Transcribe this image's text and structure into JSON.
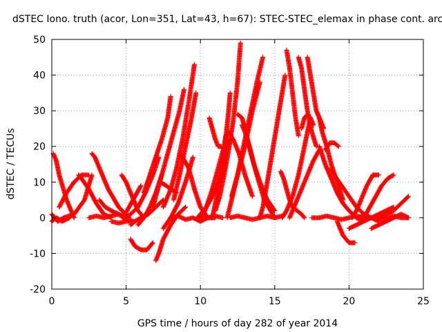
{
  "chart_data": {
    "type": "scatter",
    "title": "dSTEC Iono. truth (acor, Lon=351, Lat=43, h=67): STEC-STEC_elemax in phase cont. arc",
    "xlabel": "GPS time / hours of day 282 of year 2014",
    "ylabel": "dSTEC  / TECUs",
    "xlim": [
      0,
      25
    ],
    "ylim": [
      -20,
      50
    ],
    "x_ticks": [
      "0",
      "5",
      "10",
      "15",
      "20",
      "25"
    ],
    "y_ticks": [
      "-20",
      "-10",
      "0",
      "10",
      "20",
      "30",
      "40",
      "50"
    ],
    "grid": true,
    "marker": "+",
    "series_color": "#ff0000",
    "series": [
      {
        "x": [
          0.1,
          0.3,
          0.5,
          1.0,
          1.5
        ],
        "y": [
          18,
          16,
          12,
          5,
          0
        ]
      },
      {
        "x": [
          0.0,
          0.3,
          0.7,
          1.2
        ],
        "y": [
          -1,
          0,
          -1,
          0
        ]
      },
      {
        "x": [
          0.0,
          0.4,
          0.8,
          1.5,
          2.2,
          2.7
        ],
        "y": [
          1,
          -1,
          0,
          1,
          5,
          12
        ]
      },
      {
        "x": [
          1.8,
          2.0,
          2.5,
          3.0,
          3.5,
          4.0
        ],
        "y": [
          12,
          11,
          8,
          4,
          1,
          0
        ]
      },
      {
        "x": [
          0.5,
          1.0,
          1.5,
          2.0,
          2.5
        ],
        "y": [
          3,
          7,
          10,
          12,
          12
        ]
      },
      {
        "x": [
          2.7,
          2.9,
          3.3,
          3.8,
          4.5,
          5.2
        ],
        "y": [
          18,
          17,
          13,
          8,
          3,
          0
        ]
      },
      {
        "x": [
          2.5,
          3.0,
          3.5,
          4.0,
          4.5,
          5.0,
          5.5
        ],
        "y": [
          0,
          0.5,
          0,
          0.5,
          1,
          -0.5,
          -1
        ]
      },
      {
        "x": [
          3.2,
          3.6,
          4.0,
          4.5,
          5.0
        ],
        "y": [
          5,
          3,
          2,
          1,
          0
        ]
      },
      {
        "x": [
          4.7,
          5.0,
          5.4,
          5.8,
          6.2
        ],
        "y": [
          12,
          10,
          6,
          2,
          0
        ]
      },
      {
        "x": [
          4.0,
          4.5,
          5.0,
          5.5
        ],
        "y": [
          -1,
          -1.5,
          -1,
          -1
        ]
      },
      {
        "x": [
          4.8,
          5.2,
          5.6,
          6.0
        ],
        "y": [
          0,
          3,
          6,
          9
        ]
      },
      {
        "x": [
          5.3,
          5.6,
          6.0,
          6.5,
          7.0,
          7.5
        ],
        "y": [
          -2,
          -1,
          0,
          1,
          3,
          5
        ]
      },
      {
        "x": [
          5.0,
          5.3,
          5.8,
          6.3,
          6.8,
          7.2
        ],
        "y": [
          0,
          1,
          3,
          7,
          12,
          17
        ]
      },
      {
        "x": [
          5.3,
          5.6,
          6.0,
          6.4,
          6.8
        ],
        "y": [
          -6,
          -8,
          -9,
          -9,
          -7
        ]
      },
      {
        "x": [
          5.8,
          6.2,
          6.6,
          7.0,
          7.4
        ],
        "y": [
          -2,
          0,
          3,
          7,
          12
        ]
      },
      {
        "x": [
          6.2,
          6.6,
          7.0,
          7.4,
          7.8,
          8.0
        ],
        "y": [
          7,
          12,
          17,
          22,
          28,
          34
        ]
      },
      {
        "x": [
          6.8,
          7.0,
          7.4,
          7.8,
          8.2,
          8.6,
          8.9
        ],
        "y": [
          3,
          6,
          12,
          18,
          24,
          30,
          36
        ]
      },
      {
        "x": [
          7.0,
          7.2,
          7.5,
          8.0,
          8.5,
          9.0
        ],
        "y": [
          -12,
          -10,
          -6,
          -2,
          1,
          3
        ]
      },
      {
        "x": [
          7.5,
          8.0,
          8.5,
          9.0,
          9.5
        ],
        "y": [
          -3,
          0,
          4,
          10,
          17
        ]
      },
      {
        "x": [
          7.5,
          8.0,
          8.4,
          8.8,
          9.2,
          9.6
        ],
        "y": [
          3,
          8,
          14,
          22,
          32,
          43
        ]
      },
      {
        "x": [
          8.2,
          8.6,
          9.0,
          9.4,
          9.7
        ],
        "y": [
          5,
          12,
          20,
          28,
          35
        ]
      },
      {
        "x": [
          7.3,
          7.7,
          8.0,
          8.4
        ],
        "y": [
          10,
          9,
          8,
          7
        ]
      },
      {
        "x": [
          8.6,
          8.8,
          9.2,
          9.6,
          10.0,
          10.5,
          11.0
        ],
        "y": [
          18,
          17,
          14,
          8,
          3,
          0,
          0
        ]
      },
      {
        "x": [
          8.0,
          8.5,
          9.0,
          9.5,
          10.0,
          10.5,
          11.0,
          11.5
        ],
        "y": [
          0,
          0.5,
          -0.5,
          0,
          -1,
          0,
          0.5,
          0
        ]
      },
      {
        "x": [
          9.8,
          10.0,
          10.4,
          10.8,
          11.2,
          11.6,
          12.0
        ],
        "y": [
          0,
          1,
          3,
          6,
          10,
          16,
          22
        ]
      },
      {
        "x": [
          10.0,
          10.4,
          10.8,
          11.2,
          11.6
        ],
        "y": [
          -1,
          3,
          8,
          14,
          20
        ]
      },
      {
        "x": [
          10.6,
          10.8,
          11.0,
          11.2,
          11.4
        ],
        "y": [
          28,
          25,
          22,
          20,
          20
        ]
      },
      {
        "x": [
          10.8,
          11.0,
          11.3,
          11.6,
          11.9,
          12.0
        ],
        "y": [
          0,
          4,
          10,
          18,
          30,
          35
        ]
      },
      {
        "x": [
          11.0,
          11.3,
          11.6,
          11.9,
          12.2,
          12.5,
          12.7
        ],
        "y": [
          2,
          6,
          12,
          19,
          27,
          38,
          49
        ]
      },
      {
        "x": [
          11.5,
          11.7,
          11.9,
          12.2,
          12.6,
          13.0,
          13.5
        ],
        "y": [
          17,
          23,
          24,
          22,
          18,
          12,
          6
        ]
      },
      {
        "x": [
          11.8,
          12.1,
          12.5,
          13.0,
          13.5,
          14.0
        ],
        "y": [
          0,
          5,
          12,
          20,
          30,
          38
        ]
      },
      {
        "x": [
          12.1,
          12.5,
          12.9,
          13.3,
          13.8,
          14.2
        ],
        "y": [
          6,
          12,
          20,
          28,
          38,
          45
        ]
      },
      {
        "x": [
          12.5,
          12.8,
          13.0,
          13.4,
          13.8,
          14.3,
          15.0
        ],
        "y": [
          29,
          28,
          25,
          18,
          12,
          5,
          0
        ]
      },
      {
        "x": [
          12.8,
          13.0,
          13.3,
          13.6,
          14.0,
          14.5,
          15.0
        ],
        "y": [
          26,
          24,
          20,
          15,
          10,
          5,
          2
        ]
      },
      {
        "x": [
          12.0,
          12.5,
          13.0,
          13.5,
          14.0,
          14.5,
          15.0,
          15.5
        ],
        "y": [
          0,
          0.5,
          0,
          -0.5,
          0,
          0.5,
          0,
          0.5
        ]
      },
      {
        "x": [
          14.0,
          14.2,
          14.5,
          14.9,
          15.3,
          15.7
        ],
        "y": [
          0,
          3,
          10,
          20,
          30,
          40
        ]
      },
      {
        "x": [
          15.4,
          15.6,
          15.8,
          16.0,
          16.2,
          16.5,
          16.8,
          17.0
        ],
        "y": [
          13,
          11,
          8,
          5,
          3,
          2,
          1,
          0
        ]
      },
      {
        "x": [
          15.5,
          15.8,
          16.2,
          16.6,
          17.0,
          17.4
        ],
        "y": [
          0,
          2,
          6,
          12,
          20,
          28
        ]
      },
      {
        "x": [
          15.8,
          16.0,
          16.2,
          16.4,
          16.6
        ],
        "y": [
          47,
          42,
          35,
          28,
          23
        ]
      },
      {
        "x": [
          16.6,
          16.8,
          17.0,
          17.2,
          17.5,
          17.8
        ],
        "y": [
          45,
          42,
          36,
          30,
          24,
          20
        ]
      },
      {
        "x": [
          16.8,
          17.0,
          17.2,
          17.4,
          17.6
        ],
        "y": [
          25,
          28,
          29,
          28,
          26
        ]
      },
      {
        "x": [
          17.2,
          17.4,
          17.6,
          17.8,
          18.0,
          18.3
        ],
        "y": [
          45,
          40,
          35,
          30,
          28,
          25
        ]
      },
      {
        "x": [
          17.8,
          18.0,
          18.2,
          18.5,
          18.8,
          19.2,
          19.6
        ],
        "y": [
          30,
          28,
          24,
          20,
          15,
          10,
          5
        ]
      },
      {
        "x": [
          16.0,
          16.4,
          16.8,
          17.2,
          17.6,
          18.0
        ],
        "y": [
          0,
          4,
          8,
          12,
          16,
          19
        ]
      },
      {
        "x": [
          18.4,
          18.7,
          19.0,
          19.3
        ],
        "y": [
          19,
          21,
          21,
          20
        ]
      },
      {
        "x": [
          18.0,
          18.4,
          18.8,
          19.2,
          19.6,
          20.0,
          20.5,
          21.0
        ],
        "y": [
          20,
          15,
          11,
          7,
          4,
          2,
          0,
          -1
        ]
      },
      {
        "x": [
          17.5,
          18.0,
          18.5,
          19.0,
          19.5,
          20.0,
          20.5,
          21.0
        ],
        "y": [
          0,
          0,
          0.5,
          0,
          -0.5,
          0,
          0.5,
          0
        ]
      },
      {
        "x": [
          19.2,
          19.4,
          19.6,
          20.0,
          20.4
        ],
        "y": [
          -1,
          -3,
          -5,
          -7,
          -7
        ]
      },
      {
        "x": [
          18.5,
          19.0,
          19.5,
          20.0,
          20.5,
          21.0,
          21.5,
          22.0
        ],
        "y": [
          14,
          12,
          9,
          6,
          3,
          1,
          0,
          -1
        ]
      },
      {
        "x": [
          20.2,
          20.5,
          20.8,
          21.2,
          21.6,
          22.0
        ],
        "y": [
          0,
          2,
          5,
          9,
          12,
          12
        ]
      },
      {
        "x": [
          20.0,
          20.5,
          21.0,
          21.5,
          22.0,
          22.5,
          23.0
        ],
        "y": [
          -3,
          -2,
          -1,
          0,
          1,
          2,
          3
        ]
      },
      {
        "x": [
          21.0,
          21.4,
          21.8,
          22.2,
          22.6,
          23.0
        ],
        "y": [
          0,
          3,
          6,
          9,
          11,
          12
        ]
      },
      {
        "x": [
          21.5,
          22.0,
          22.5,
          23.0,
          23.5,
          24.0
        ],
        "y": [
          -3,
          -2,
          -1,
          0,
          1,
          0
        ]
      },
      {
        "x": [
          22.0,
          22.5,
          23.0,
          23.5,
          24.0
        ],
        "y": [
          0,
          1,
          2,
          4,
          6
        ]
      },
      {
        "x": [
          20.5,
          21.0,
          21.5,
          22.0,
          22.5,
          23.0,
          23.5,
          24.0
        ],
        "y": [
          0,
          0.5,
          0,
          -0.5,
          0,
          0.5,
          0,
          0
        ]
      }
    ]
  }
}
